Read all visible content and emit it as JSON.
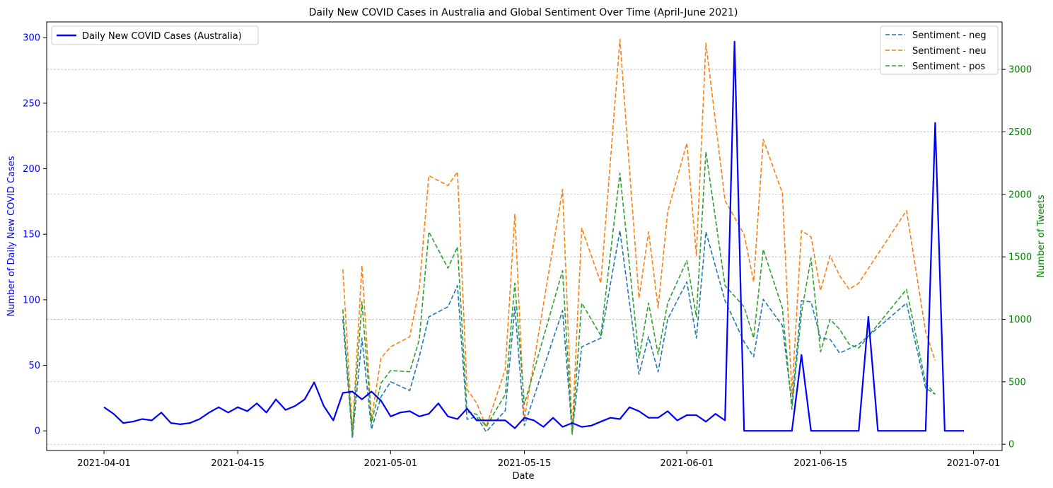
{
  "chart_data": {
    "type": "line",
    "title": "Daily New COVID Cases in Australia and Global Sentiment Over Time (April-June 2021)",
    "xlabel": "Date",
    "ylabel_left": "Number of Daily New COVID Cases",
    "ylabel_right": "Number of Tweets",
    "x_ticks": [
      "2021-04-01",
      "2021-04-15",
      "2021-05-01",
      "2021-05-15",
      "2021-06-01",
      "2021-06-15",
      "2021-07-01"
    ],
    "y_left_ticks": [
      0,
      50,
      100,
      150,
      200,
      250,
      300
    ],
    "y_right_ticks": [
      0,
      500,
      1000,
      1500,
      2000,
      2500,
      3000
    ],
    "ylim_left": [
      -15,
      312
    ],
    "ylim_right": [
      -50,
      3380
    ],
    "xlim": [
      "2021-03-26",
      "2021-07-04"
    ],
    "grid": "horizontal dashed (right axis)",
    "legend_left": "top-left",
    "legend_right": "top-right",
    "colors": {
      "cases": "#0000ff",
      "neg": "#1f77b4",
      "neu": "#ff7f0e",
      "pos": "#2ca02c",
      "left_axis": "#0000ff",
      "right_axis": "#008000"
    },
    "cases_series": {
      "name": "Daily New COVID Cases (Australia)",
      "points": [
        [
          "2021-04-01",
          18
        ],
        [
          "2021-04-02",
          13
        ],
        [
          "2021-04-03",
          6
        ],
        [
          "2021-04-04",
          7
        ],
        [
          "2021-04-05",
          9
        ],
        [
          "2021-04-06",
          8
        ],
        [
          "2021-04-07",
          14
        ],
        [
          "2021-04-08",
          6
        ],
        [
          "2021-04-09",
          5
        ],
        [
          "2021-04-10",
          6
        ],
        [
          "2021-04-11",
          9
        ],
        [
          "2021-04-12",
          14
        ],
        [
          "2021-04-13",
          18
        ],
        [
          "2021-04-14",
          14
        ],
        [
          "2021-04-15",
          18
        ],
        [
          "2021-04-16",
          15
        ],
        [
          "2021-04-17",
          21
        ],
        [
          "2021-04-18",
          14
        ],
        [
          "2021-04-19",
          24
        ],
        [
          "2021-04-20",
          16
        ],
        [
          "2021-04-21",
          19
        ],
        [
          "2021-04-22",
          24
        ],
        [
          "2021-04-23",
          37
        ],
        [
          "2021-04-24",
          19
        ],
        [
          "2021-04-25",
          8
        ],
        [
          "2021-04-26",
          29
        ],
        [
          "2021-04-27",
          30
        ],
        [
          "2021-04-28",
          24
        ],
        [
          "2021-04-29",
          30
        ],
        [
          "2021-04-30",
          23
        ],
        [
          "2021-05-01",
          11
        ],
        [
          "2021-05-02",
          14
        ],
        [
          "2021-05-03",
          15
        ],
        [
          "2021-05-04",
          11
        ],
        [
          "2021-05-05",
          13
        ],
        [
          "2021-05-06",
          21
        ],
        [
          "2021-05-07",
          11
        ],
        [
          "2021-05-08",
          9
        ],
        [
          "2021-05-09",
          17
        ],
        [
          "2021-05-10",
          8
        ],
        [
          "2021-05-11",
          8
        ],
        [
          "2021-05-12",
          8
        ],
        [
          "2021-05-13",
          8
        ],
        [
          "2021-05-14",
          2
        ],
        [
          "2021-05-15",
          10
        ],
        [
          "2021-05-16",
          8
        ],
        [
          "2021-05-17",
          3
        ],
        [
          "2021-05-18",
          10
        ],
        [
          "2021-05-19",
          3
        ],
        [
          "2021-05-20",
          6
        ],
        [
          "2021-05-21",
          3
        ],
        [
          "2021-05-22",
          4
        ],
        [
          "2021-05-23",
          7
        ],
        [
          "2021-05-24",
          10
        ],
        [
          "2021-05-25",
          9
        ],
        [
          "2021-05-26",
          18
        ],
        [
          "2021-05-27",
          15
        ],
        [
          "2021-05-28",
          10
        ],
        [
          "2021-05-29",
          10
        ],
        [
          "2021-05-30",
          15
        ],
        [
          "2021-05-31",
          8
        ],
        [
          "2021-06-01",
          12
        ],
        [
          "2021-06-02",
          12
        ],
        [
          "2021-06-03",
          7
        ],
        [
          "2021-06-04",
          13
        ],
        [
          "2021-06-05",
          8
        ],
        [
          "2021-06-06",
          297
        ],
        [
          "2021-06-07",
          0
        ],
        [
          "2021-06-08",
          0
        ],
        [
          "2021-06-09",
          0
        ],
        [
          "2021-06-10",
          0
        ],
        [
          "2021-06-11",
          0
        ],
        [
          "2021-06-12",
          0
        ],
        [
          "2021-06-13",
          58
        ],
        [
          "2021-06-14",
          0
        ],
        [
          "2021-06-15",
          0
        ],
        [
          "2021-06-16",
          0
        ],
        [
          "2021-06-17",
          0
        ],
        [
          "2021-06-18",
          0
        ],
        [
          "2021-06-19",
          0
        ],
        [
          "2021-06-20",
          87
        ],
        [
          "2021-06-21",
          0
        ],
        [
          "2021-06-22",
          0
        ],
        [
          "2021-06-23",
          0
        ],
        [
          "2021-06-24",
          0
        ],
        [
          "2021-06-25",
          0
        ],
        [
          "2021-06-26",
          0
        ],
        [
          "2021-06-27",
          235
        ],
        [
          "2021-06-28",
          0
        ],
        [
          "2021-06-29",
          0
        ],
        [
          "2021-06-30",
          0
        ]
      ]
    },
    "sentiment_series": [
      {
        "name": "Sentiment - neg",
        "points": [
          [
            "2021-04-26",
            1000
          ],
          [
            "2021-04-27",
            50
          ],
          [
            "2021-04-28",
            850
          ],
          [
            "2021-04-29",
            120
          ],
          [
            "2021-04-30",
            380
          ],
          [
            "2021-05-01",
            500
          ],
          [
            "2021-05-03",
            430
          ],
          [
            "2021-05-04",
            700
          ],
          [
            "2021-05-05",
            1020
          ],
          [
            "2021-05-07",
            1100
          ],
          [
            "2021-05-08",
            1270
          ],
          [
            "2021-05-09",
            200
          ],
          [
            "2021-05-10",
            220
          ],
          [
            "2021-05-11",
            100
          ],
          [
            "2021-05-13",
            270
          ],
          [
            "2021-05-14",
            1100
          ],
          [
            "2021-05-15",
            150
          ],
          [
            "2021-05-19",
            1070
          ],
          [
            "2021-05-20",
            90
          ],
          [
            "2021-05-21",
            780
          ],
          [
            "2021-05-23",
            850
          ],
          [
            "2021-05-25",
            1710
          ],
          [
            "2021-05-27",
            560
          ],
          [
            "2021-05-28",
            860
          ],
          [
            "2021-05-29",
            580
          ],
          [
            "2021-05-30",
            1000
          ],
          [
            "2021-06-01",
            1300
          ],
          [
            "2021-06-02",
            850
          ],
          [
            "2021-06-03",
            1700
          ],
          [
            "2021-06-05",
            1150
          ],
          [
            "2021-06-07",
            820
          ],
          [
            "2021-06-08",
            700
          ],
          [
            "2021-06-09",
            1160
          ],
          [
            "2021-06-11",
            950
          ],
          [
            "2021-06-12",
            320
          ],
          [
            "2021-06-13",
            1150
          ],
          [
            "2021-06-14",
            1140
          ],
          [
            "2021-06-15",
            850
          ],
          [
            "2021-06-16",
            840
          ],
          [
            "2021-06-17",
            730
          ],
          [
            "2021-06-19",
            800
          ],
          [
            "2021-06-24",
            1130
          ],
          [
            "2021-06-26",
            450
          ],
          [
            "2021-06-27",
            400
          ]
        ]
      },
      {
        "name": "Sentiment - neu",
        "points": [
          [
            "2021-04-26",
            1400
          ],
          [
            "2021-04-27",
            100
          ],
          [
            "2021-04-28",
            1430
          ],
          [
            "2021-04-29",
            200
          ],
          [
            "2021-04-30",
            690
          ],
          [
            "2021-05-01",
            780
          ],
          [
            "2021-05-03",
            860
          ],
          [
            "2021-05-04",
            1250
          ],
          [
            "2021-05-05",
            2150
          ],
          [
            "2021-05-07",
            2070
          ],
          [
            "2021-05-08",
            2180
          ],
          [
            "2021-05-09",
            440
          ],
          [
            "2021-05-10",
            330
          ],
          [
            "2021-05-11",
            140
          ],
          [
            "2021-05-13",
            600
          ],
          [
            "2021-05-14",
            1840
          ],
          [
            "2021-05-15",
            200
          ],
          [
            "2021-05-19",
            2040
          ],
          [
            "2021-05-20",
            100
          ],
          [
            "2021-05-21",
            1730
          ],
          [
            "2021-05-23",
            1290
          ],
          [
            "2021-05-25",
            3240
          ],
          [
            "2021-05-27",
            1170
          ],
          [
            "2021-05-28",
            1700
          ],
          [
            "2021-05-29",
            1090
          ],
          [
            "2021-05-30",
            1860
          ],
          [
            "2021-06-01",
            2410
          ],
          [
            "2021-06-02",
            1510
          ],
          [
            "2021-06-03",
            3210
          ],
          [
            "2021-06-05",
            1950
          ],
          [
            "2021-06-07",
            1680
          ],
          [
            "2021-06-08",
            1300
          ],
          [
            "2021-06-09",
            2440
          ],
          [
            "2021-06-11",
            2010
          ],
          [
            "2021-06-12",
            400
          ],
          [
            "2021-06-13",
            1710
          ],
          [
            "2021-06-14",
            1660
          ],
          [
            "2021-06-15",
            1230
          ],
          [
            "2021-06-16",
            1510
          ],
          [
            "2021-06-17",
            1350
          ],
          [
            "2021-06-18",
            1240
          ],
          [
            "2021-06-19",
            1290
          ],
          [
            "2021-06-24",
            1870
          ],
          [
            "2021-06-26",
            900
          ],
          [
            "2021-06-27",
            670
          ]
        ]
      },
      {
        "name": "Sentiment - pos",
        "points": [
          [
            "2021-04-26",
            1080
          ],
          [
            "2021-04-27",
            80
          ],
          [
            "2021-04-28",
            1140
          ],
          [
            "2021-04-29",
            170
          ],
          [
            "2021-04-30",
            490
          ],
          [
            "2021-05-01",
            590
          ],
          [
            "2021-05-03",
            580
          ],
          [
            "2021-05-04",
            840
          ],
          [
            "2021-05-05",
            1700
          ],
          [
            "2021-05-07",
            1410
          ],
          [
            "2021-05-08",
            1580
          ],
          [
            "2021-05-09",
            260
          ],
          [
            "2021-05-10",
            240
          ],
          [
            "2021-05-11",
            140
          ],
          [
            "2021-05-13",
            400
          ],
          [
            "2021-05-14",
            1290
          ],
          [
            "2021-05-15",
            320
          ],
          [
            "2021-05-19",
            1390
          ],
          [
            "2021-05-20",
            80
          ],
          [
            "2021-05-21",
            1130
          ],
          [
            "2021-05-23",
            870
          ],
          [
            "2021-05-25",
            2170
          ],
          [
            "2021-05-27",
            690
          ],
          [
            "2021-05-28",
            1130
          ],
          [
            "2021-05-29",
            720
          ],
          [
            "2021-05-30",
            1130
          ],
          [
            "2021-06-01",
            1470
          ],
          [
            "2021-06-02",
            1020
          ],
          [
            "2021-06-03",
            2340
          ],
          [
            "2021-06-05",
            1270
          ],
          [
            "2021-06-07",
            1100
          ],
          [
            "2021-06-08",
            850
          ],
          [
            "2021-06-09",
            1560
          ],
          [
            "2021-06-11",
            1090
          ],
          [
            "2021-06-12",
            280
          ],
          [
            "2021-06-13",
            1050
          ],
          [
            "2021-06-14",
            1490
          ],
          [
            "2021-06-15",
            740
          ],
          [
            "2021-06-16",
            1000
          ],
          [
            "2021-06-17",
            920
          ],
          [
            "2021-06-18",
            800
          ],
          [
            "2021-06-19",
            770
          ],
          [
            "2021-06-24",
            1240
          ],
          [
            "2021-06-26",
            490
          ],
          [
            "2021-06-27",
            400
          ]
        ]
      }
    ]
  }
}
